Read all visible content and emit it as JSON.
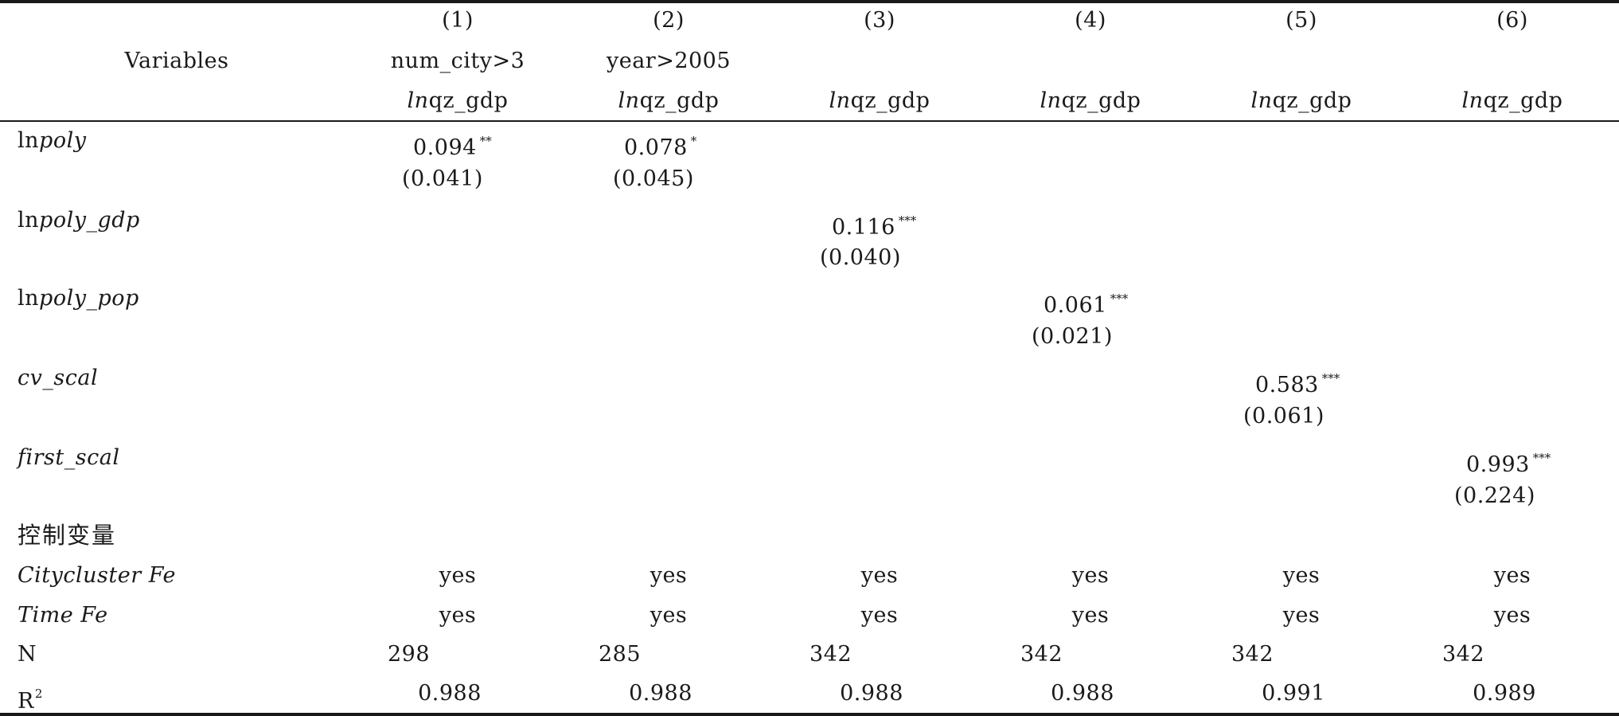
{
  "header": {
    "variables_label": "Variables",
    "col_numbers": [
      "(1)",
      "(2)",
      "(3)",
      "(4)",
      "(5)",
      "(6)"
    ],
    "subsample": [
      "num_city>3",
      "year>2005",
      "",
      "",
      "",
      ""
    ],
    "dep_var_prefix": "ln",
    "dep_var_name": "qz_gdp"
  },
  "rows": {
    "ln_poly": {
      "label_prefix": "ln",
      "label_var": "poly",
      "coef": [
        "0.094",
        "0.078"
      ],
      "stars": [
        "**",
        "*"
      ],
      "se": [
        "(0.041)",
        "(0.045)"
      ]
    },
    "ln_poly_gdp": {
      "label_prefix": "ln",
      "label_var": "poly_gdp",
      "coef": "0.116",
      "stars": "***",
      "se": "(0.040)"
    },
    "ln_poly_pop": {
      "label_prefix": "ln",
      "label_var": "poly_pop",
      "coef": "0.061",
      "stars": "***",
      "se": "(0.021)"
    },
    "cv_scal": {
      "label": "cv_scal",
      "coef": "0.583",
      "stars": "***",
      "se": "(0.061)"
    },
    "first_scal": {
      "label": "first_scal",
      "coef": "0.993",
      "stars": "***",
      "se": "(0.224)"
    }
  },
  "controls_label": "控制变量",
  "citycluster_fe": {
    "label": "Citycluster Fe",
    "values": [
      "yes",
      "yes",
      "yes",
      "yes",
      "yes",
      "yes"
    ]
  },
  "time_fe": {
    "label": "Time Fe",
    "values": [
      "yes",
      "yes",
      "yes",
      "yes",
      "yes",
      "yes"
    ]
  },
  "n": {
    "label": "N",
    "values": [
      "298",
      "285",
      "342",
      "342",
      "342",
      "342"
    ]
  },
  "r2": {
    "label_base": "R",
    "label_sup": "2",
    "values": [
      "0.988",
      "0.988",
      "0.988",
      "0.988",
      "0.991",
      "0.989"
    ]
  }
}
